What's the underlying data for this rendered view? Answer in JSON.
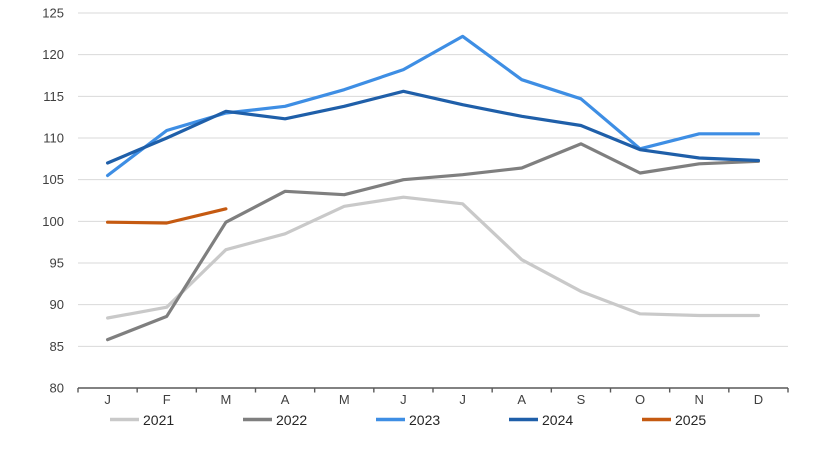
{
  "chart_data": {
    "type": "line",
    "title": "",
    "xlabel": "",
    "ylabel": "",
    "x_categories": [
      "J",
      "F",
      "M",
      "A",
      "M",
      "J",
      "J",
      "A",
      "S",
      "O",
      "N",
      "D"
    ],
    "y_axis": {
      "min": 80,
      "max": 125,
      "step": 5,
      "tick_labels": [
        "80",
        "85",
        "90",
        "95",
        "100",
        "105",
        "110",
        "115",
        "120",
        "125"
      ]
    },
    "grid": true,
    "legend_position": "bottom",
    "colors": {
      "gridline": "#d9d9d9",
      "axis": "#595959",
      "tick_text": "#404040",
      "legend_text": "#262626"
    },
    "series": [
      {
        "name": "2021",
        "color": "#c9c9c9",
        "values": [
          88.4,
          89.7,
          96.6,
          98.5,
          101.8,
          102.9,
          102.1,
          95.4,
          91.6,
          88.9,
          88.7,
          88.7
        ]
      },
      {
        "name": "2022",
        "color": "#7f7f7f",
        "values": [
          85.8,
          88.6,
          99.9,
          103.6,
          103.2,
          105.0,
          105.6,
          106.4,
          109.3,
          105.8,
          106.9,
          107.2
        ]
      },
      {
        "name": "2023",
        "color": "#3e8ee4",
        "values": [
          105.5,
          110.9,
          113.0,
          113.8,
          115.8,
          118.2,
          122.2,
          117.0,
          114.7,
          108.7,
          110.5,
          110.5
        ]
      },
      {
        "name": "2024",
        "color": "#1f5fa9",
        "values": [
          107.0,
          110.0,
          113.2,
          112.3,
          113.8,
          115.6,
          114.0,
          112.6,
          111.5,
          108.6,
          107.6,
          107.3
        ]
      },
      {
        "name": "2025",
        "color": "#c55a11",
        "values": [
          99.9,
          99.8,
          101.5,
          null,
          null,
          null,
          null,
          null,
          null,
          null,
          null,
          null
        ]
      }
    ]
  }
}
